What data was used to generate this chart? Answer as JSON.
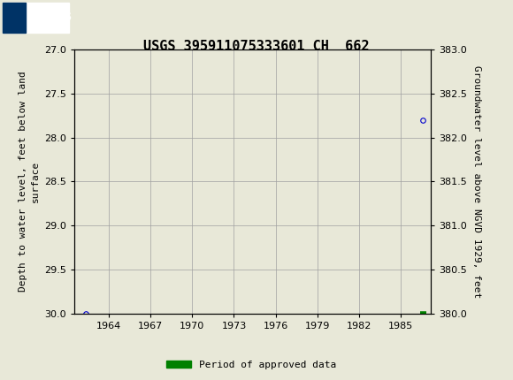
{
  "title": "USGS 395911075333601 CH  662",
  "ylabel_left": "Depth to water level, feet below land\nsurface",
  "ylabel_right": "Groundwater level above NGVD 1929, feet",
  "xlim": [
    1961.5,
    1987.2
  ],
  "ylim_left": [
    27.0,
    30.0
  ],
  "ylim_right": [
    380.0,
    383.0
  ],
  "xticks": [
    1964,
    1967,
    1970,
    1973,
    1976,
    1979,
    1982,
    1985
  ],
  "yticks_left": [
    27.0,
    27.5,
    28.0,
    28.5,
    29.0,
    29.5,
    30.0
  ],
  "yticks_right": [
    380.0,
    380.5,
    381.0,
    381.5,
    382.0,
    382.5,
    383.0
  ],
  "data_points": [
    {
      "x": 1962.3,
      "y_left": 30.0,
      "marker": "o",
      "color": "#0000cc",
      "size": 4,
      "facecolor": "none"
    },
    {
      "x": 1986.6,
      "y_left": 27.8,
      "marker": "o",
      "color": "#0000cc",
      "size": 4,
      "facecolor": "none"
    }
  ],
  "approved_bar": {
    "x_start": 1986.4,
    "x_end": 1986.9,
    "y_left": 30.0,
    "color": "#008000"
  },
  "legend_label": "Period of approved data",
  "legend_color": "#008000",
  "header_bg_color": "#006633",
  "background_color": "#e8e8d8",
  "plot_bg_color": "#e8e8d8",
  "grid_color": "#a0a0a0",
  "title_fontsize": 11,
  "axis_label_fontsize": 8,
  "tick_fontsize": 8
}
